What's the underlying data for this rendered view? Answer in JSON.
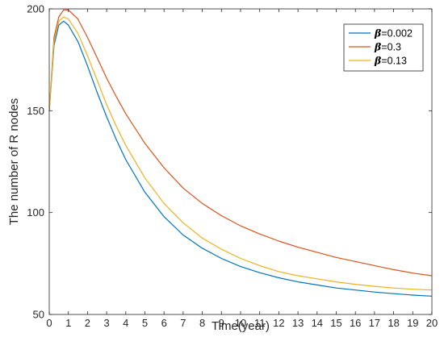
{
  "chart_data": {
    "type": "line",
    "title": "",
    "xlabel": "Time(year)",
    "ylabel": "The number of R nodes",
    "xlim": [
      0,
      20
    ],
    "ylim": [
      50,
      200
    ],
    "xticks": [
      0,
      1,
      2,
      3,
      4,
      5,
      6,
      7,
      8,
      9,
      10,
      11,
      12,
      13,
      14,
      15,
      16,
      17,
      18,
      19,
      20
    ],
    "yticks": [
      50,
      100,
      150,
      200
    ],
    "grid": false,
    "legend_position": "top-right",
    "series": [
      {
        "name": "β=0.002",
        "legend_symbol": "β",
        "legend_value": "=0.002",
        "color": "#0072BD",
        "x": [
          0,
          0.25,
          0.5,
          0.75,
          1,
          1.5,
          2,
          2.5,
          3,
          3.5,
          4,
          5,
          6,
          7,
          8,
          9,
          10,
          11,
          12,
          13,
          14,
          15,
          16,
          17,
          18,
          19,
          20
        ],
        "y": [
          150,
          182,
          192,
          194,
          192,
          184,
          172,
          159,
          147,
          136,
          126,
          110,
          98,
          89,
          82.5,
          77.5,
          73.5,
          70.5,
          68,
          66,
          64.5,
          63,
          62,
          61,
          60.2,
          59.5,
          59
        ]
      },
      {
        "name": "β=0.3",
        "legend_symbol": "β",
        "legend_value": "=0.3",
        "color": "#D95319",
        "x": [
          0,
          0.25,
          0.5,
          0.75,
          1,
          1.5,
          2,
          2.5,
          3,
          3.5,
          4,
          5,
          6,
          7,
          8,
          9,
          10,
          11,
          12,
          13,
          14,
          15,
          16,
          17,
          18,
          19,
          20
        ],
        "y": [
          150,
          186,
          196,
          199.5,
          199.5,
          195,
          186,
          176,
          166,
          157,
          148.5,
          134,
          122,
          112,
          104.5,
          98.5,
          93.5,
          89.5,
          86,
          83,
          80.5,
          78,
          76,
          74,
          72,
          70.3,
          69
        ]
      },
      {
        "name": "β=0.13",
        "legend_symbol": "β",
        "legend_value": "=0.13",
        "color": "#EDB120",
        "x": [
          0,
          0.25,
          0.5,
          0.75,
          1,
          1.5,
          2,
          2.5,
          3,
          3.5,
          4,
          5,
          6,
          7,
          8,
          9,
          10,
          11,
          12,
          13,
          14,
          15,
          16,
          17,
          18,
          19,
          20
        ],
        "y": [
          150,
          184,
          194,
          196,
          195,
          188,
          177,
          165,
          153,
          142.5,
          133,
          117,
          104.5,
          95,
          87.5,
          82,
          77.5,
          74,
          71,
          69,
          67.5,
          66,
          64.8,
          63.8,
          63,
          62.4,
          62
        ]
      }
    ]
  }
}
